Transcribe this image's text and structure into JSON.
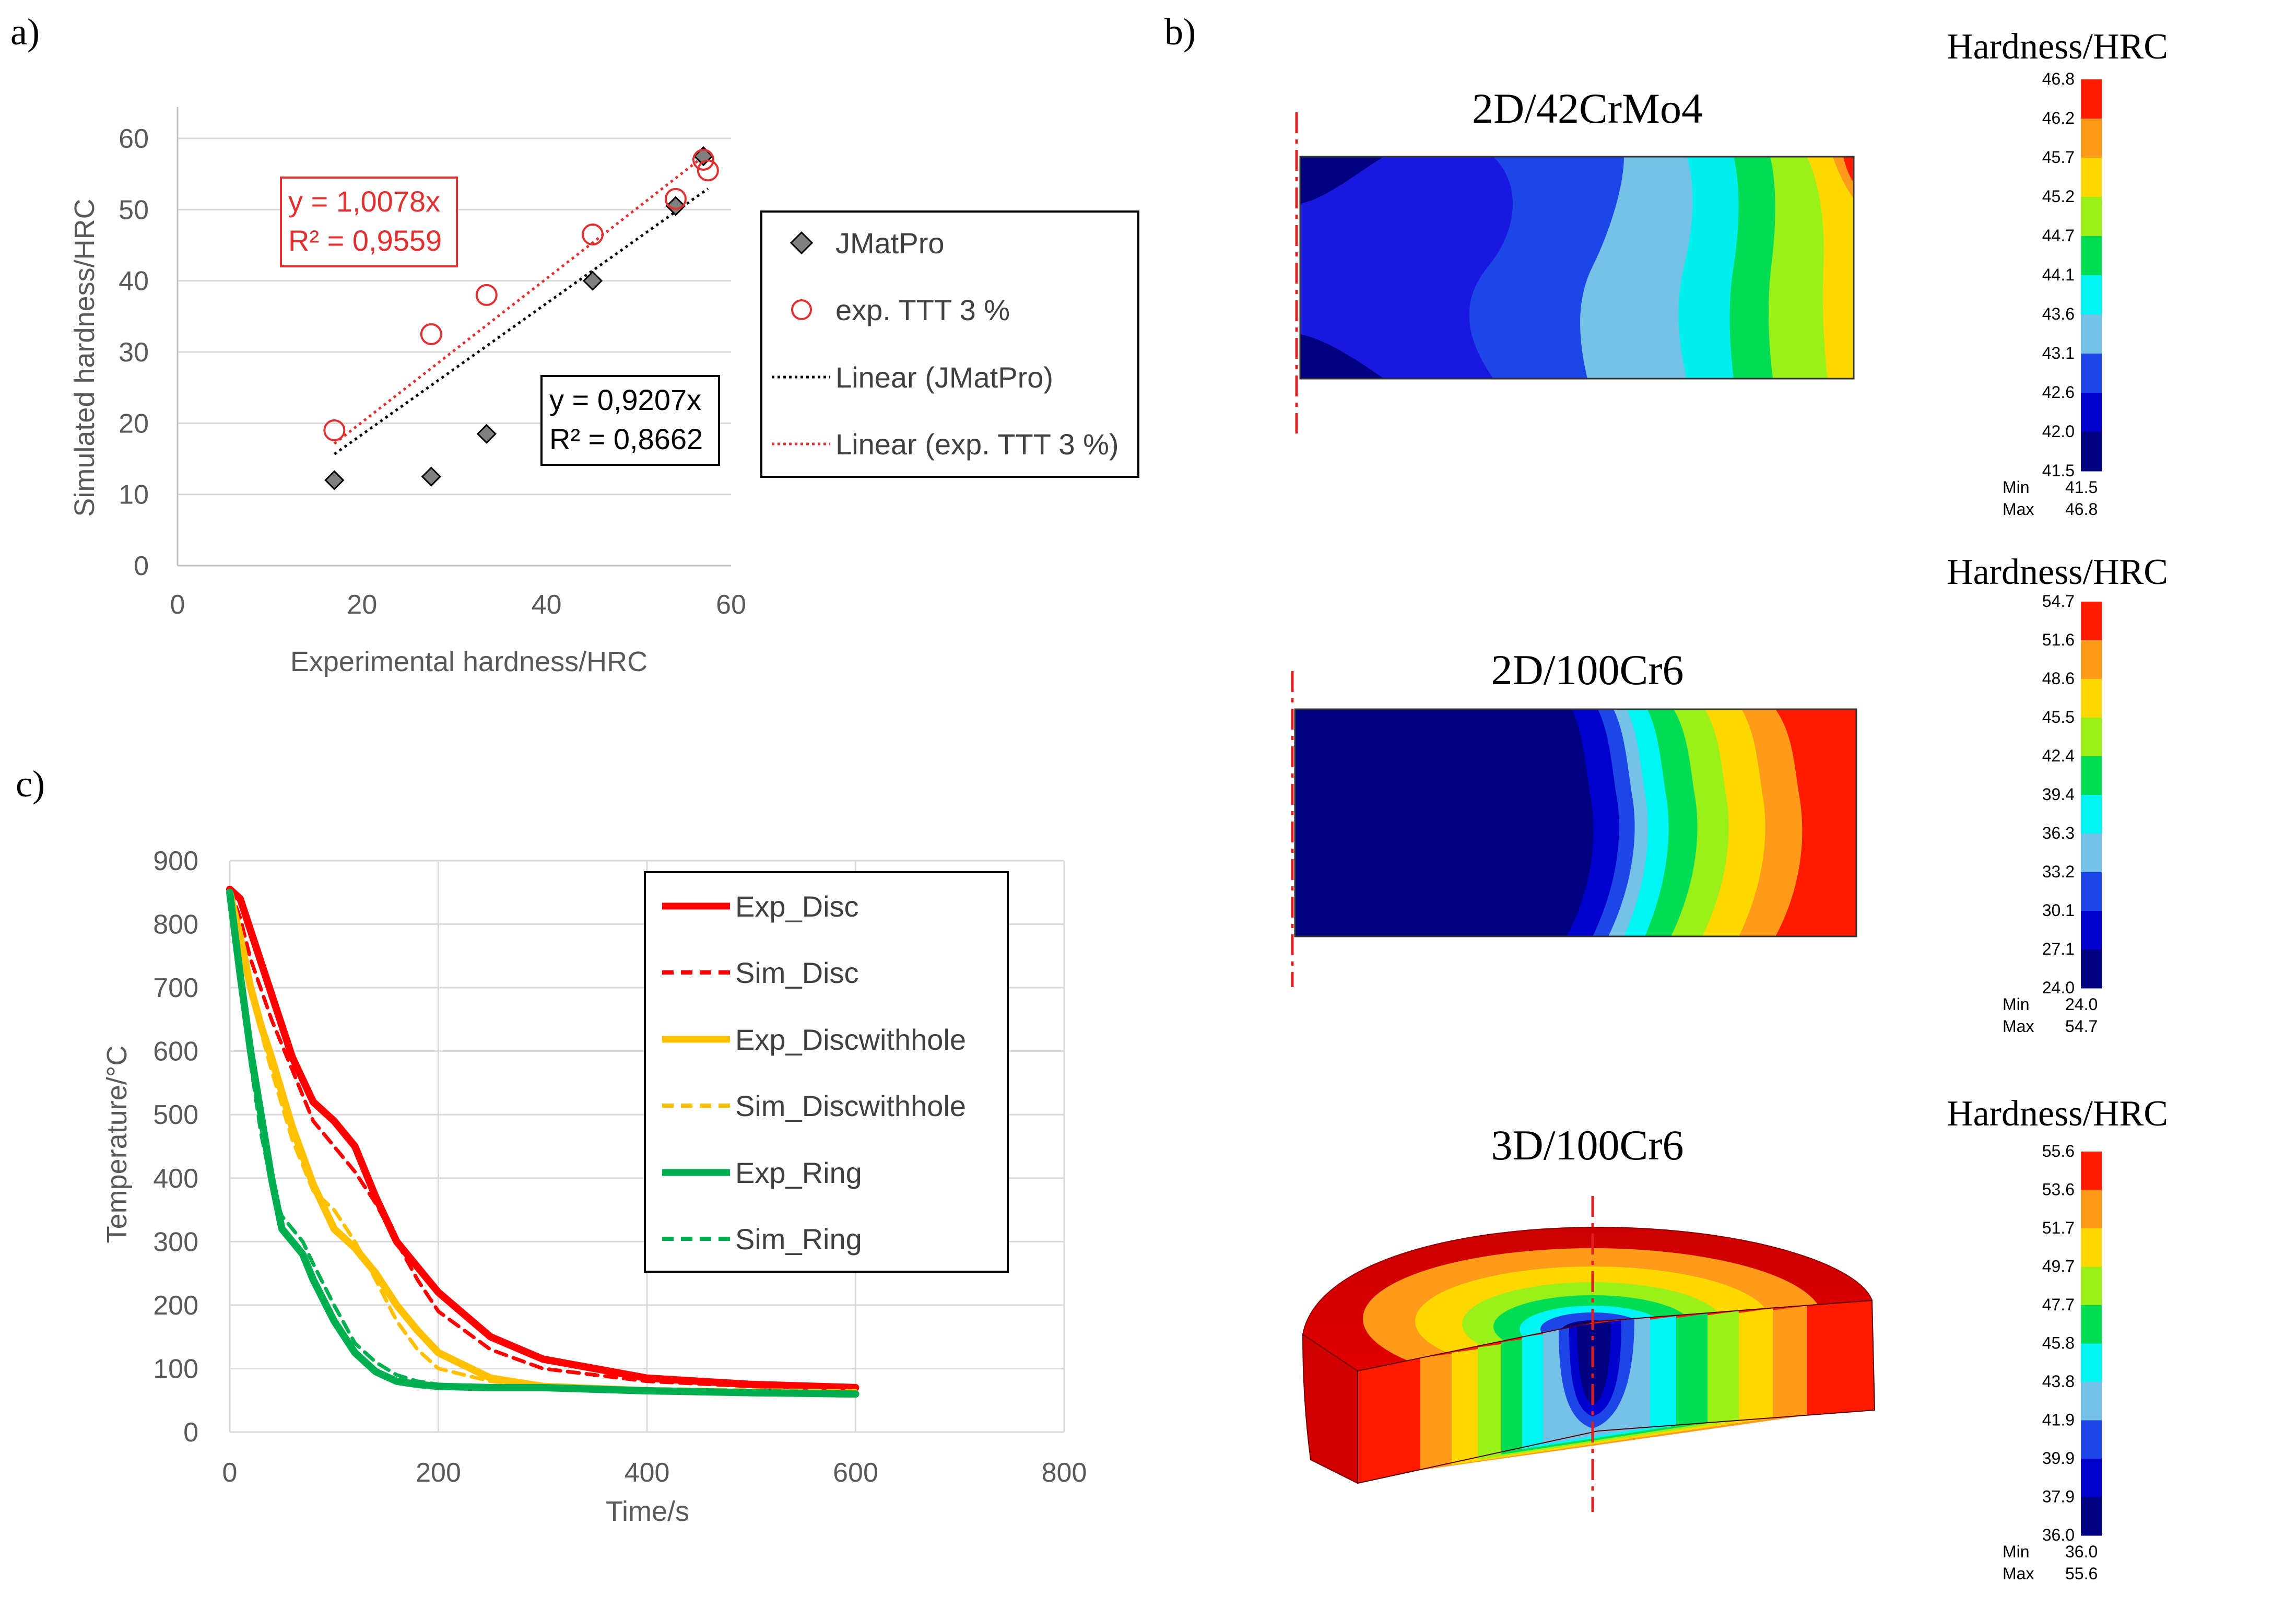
{
  "panel_labels": {
    "a": "a)",
    "b": "b)",
    "c": "c)"
  },
  "colors": {
    "jmatpro": "#808080",
    "exp_ttt": "#e03030",
    "exp_disc": "#ff0000",
    "exp_discwithhole": "#ffc000",
    "exp_ring": "#00b050",
    "gridline": "#d9d9d9",
    "fe_ramp": [
      "#000080",
      "#0000cd",
      "#1e46e6",
      "#76c2e6",
      "#00f5f5",
      "#00dd55",
      "#9bf01a",
      "#ffd800",
      "#ff9a1a",
      "#ff1a00"
    ]
  },
  "chart_data": [
    {
      "id": "a",
      "type": "scatter",
      "xlabel": "Experimental hardness/HRC",
      "ylabel": "Simulated hardness/HRC",
      "xlim": [
        0,
        60
      ],
      "ylim": [
        0,
        60
      ],
      "x_ticks": [
        "0",
        "20",
        "40",
        "60"
      ],
      "y_ticks": [
        "0",
        "10",
        "20",
        "30",
        "40",
        "50",
        "60"
      ],
      "series": [
        {
          "name": "JMatPro",
          "marker": "diamond",
          "x": [
            17,
            27.5,
            33.5,
            45,
            54,
            57
          ],
          "y": [
            12,
            12.5,
            18.5,
            40,
            50.5,
            57.5
          ]
        },
        {
          "name": "exp. TTT 3 %",
          "marker": "circle",
          "x": [
            17,
            27.5,
            33.5,
            45,
            54,
            57,
            57.5
          ],
          "y": [
            19,
            32.5,
            38,
            46.5,
            51.5,
            57,
            55.5
          ]
        }
      ],
      "trendlines": [
        {
          "name": "Linear (JMatPro)",
          "slope": 0.9207,
          "x_range": [
            17,
            57.5
          ],
          "equation": "y = 0,9207x",
          "r2": "R² = 0,8662"
        },
        {
          "name": "Linear (exp. TTT 3 %)",
          "slope": 1.0078,
          "x_range": [
            17,
            57.5
          ],
          "equation": "y = 1,0078x",
          "r2": "R² = 0,9559"
        }
      ],
      "legend": [
        "JMatPro",
        "exp. TTT 3 %",
        "Linear (JMatPro)",
        "Linear (exp. TTT 3 %)"
      ],
      "legend_position": "right"
    },
    {
      "id": "c",
      "type": "line",
      "xlabel": "Time/s",
      "ylabel": "Temperature/°C",
      "xlim": [
        0,
        800
      ],
      "ylim": [
        0,
        900
      ],
      "x_ticks": [
        "0",
        "200",
        "400",
        "600",
        "800"
      ],
      "y_ticks": [
        "0",
        "100",
        "200",
        "300",
        "400",
        "500",
        "600",
        "700",
        "800",
        "900"
      ],
      "series": [
        {
          "name": "Exp_Disc",
          "style": "solid",
          "x": [
            0,
            10,
            20,
            40,
            60,
            80,
            100,
            120,
            140,
            160,
            180,
            200,
            250,
            300,
            400,
            500,
            600
          ],
          "y": [
            855,
            840,
            790,
            690,
            590,
            520,
            490,
            450,
            370,
            300,
            260,
            220,
            150,
            115,
            85,
            75,
            70
          ]
        },
        {
          "name": "Sim_Disc",
          "style": "dashed",
          "x": [
            0,
            10,
            20,
            40,
            60,
            80,
            100,
            120,
            140,
            160,
            180,
            200,
            250,
            300,
            400,
            500,
            600
          ],
          "y": [
            855,
            810,
            745,
            650,
            570,
            490,
            450,
            410,
            360,
            300,
            240,
            190,
            130,
            100,
            80,
            72,
            68
          ]
        },
        {
          "name": "Exp_Discwithhole",
          "style": "solid",
          "x": [
            0,
            10,
            20,
            30,
            40,
            60,
            80,
            100,
            120,
            140,
            160,
            180,
            200,
            250,
            300,
            400,
            500,
            600
          ],
          "y": [
            850,
            780,
            700,
            640,
            590,
            480,
            390,
            320,
            290,
            250,
            200,
            160,
            125,
            85,
            72,
            65,
            62,
            60
          ]
        },
        {
          "name": "Sim_Discwithhole",
          "style": "dashed",
          "x": [
            0,
            10,
            20,
            30,
            40,
            60,
            80,
            100,
            120,
            140,
            160,
            180,
            200,
            250,
            300,
            400,
            500,
            600
          ],
          "y": [
            850,
            770,
            690,
            630,
            570,
            460,
            380,
            350,
            300,
            240,
            175,
            130,
            100,
            80,
            72,
            68,
            66,
            65
          ]
        },
        {
          "name": "Exp_Ring",
          "style": "solid",
          "x": [
            0,
            10,
            20,
            30,
            40,
            50,
            60,
            70,
            80,
            100,
            120,
            140,
            160,
            180,
            200,
            250,
            300,
            400,
            500,
            600
          ],
          "y": [
            850,
            720,
            600,
            500,
            400,
            320,
            300,
            280,
            240,
            175,
            125,
            95,
            80,
            75,
            72,
            70,
            70,
            65,
            62,
            60
          ]
        },
        {
          "name": "Sim_Ring",
          "style": "dashed",
          "x": [
            0,
            10,
            20,
            30,
            40,
            50,
            60,
            70,
            80,
            100,
            120,
            140,
            160,
            180,
            200,
            250,
            300,
            400,
            500,
            600
          ],
          "y": [
            850,
            700,
            580,
            470,
            390,
            340,
            320,
            300,
            265,
            200,
            140,
            110,
            90,
            80,
            75,
            70,
            68,
            66,
            64,
            62
          ]
        }
      ],
      "legend": [
        "Exp_Disc",
        "Sim_Disc",
        "Exp_Discwithhole",
        "Sim_Discwithhole",
        "Exp_Ring",
        "Sim_Ring"
      ],
      "legend_position": "top-right"
    }
  ],
  "fe_panels": [
    {
      "title": "2D/42CrMo4",
      "colorbar_title": "Hardness/HRC",
      "ticks": [
        "46.8",
        "46.2",
        "45.7",
        "45.2",
        "44.7",
        "44.1",
        "43.6",
        "43.1",
        "42.6",
        "42.0",
        "41.5"
      ],
      "min_label": "Min",
      "min_value": "41.5",
      "max_label": "Max",
      "max_value": "46.8"
    },
    {
      "title": "2D/100Cr6",
      "colorbar_title": "Hardness/HRC",
      "ticks": [
        "54.7",
        "51.6",
        "48.6",
        "45.5",
        "42.4",
        "39.4",
        "36.3",
        "33.2",
        "30.1",
        "27.1",
        "24.0"
      ],
      "min_label": "Min",
      "min_value": "24.0",
      "max_label": "Max",
      "max_value": "54.7"
    },
    {
      "title": "3D/100Cr6",
      "colorbar_title": "Hardness/HRC",
      "ticks": [
        "55.6",
        "53.6",
        "51.7",
        "49.7",
        "47.7",
        "45.8",
        "43.8",
        "41.9",
        "39.9",
        "37.9",
        "36.0"
      ],
      "min_label": "Min",
      "min_value": "36.0",
      "max_label": "Max",
      "max_value": "55.6"
    }
  ]
}
